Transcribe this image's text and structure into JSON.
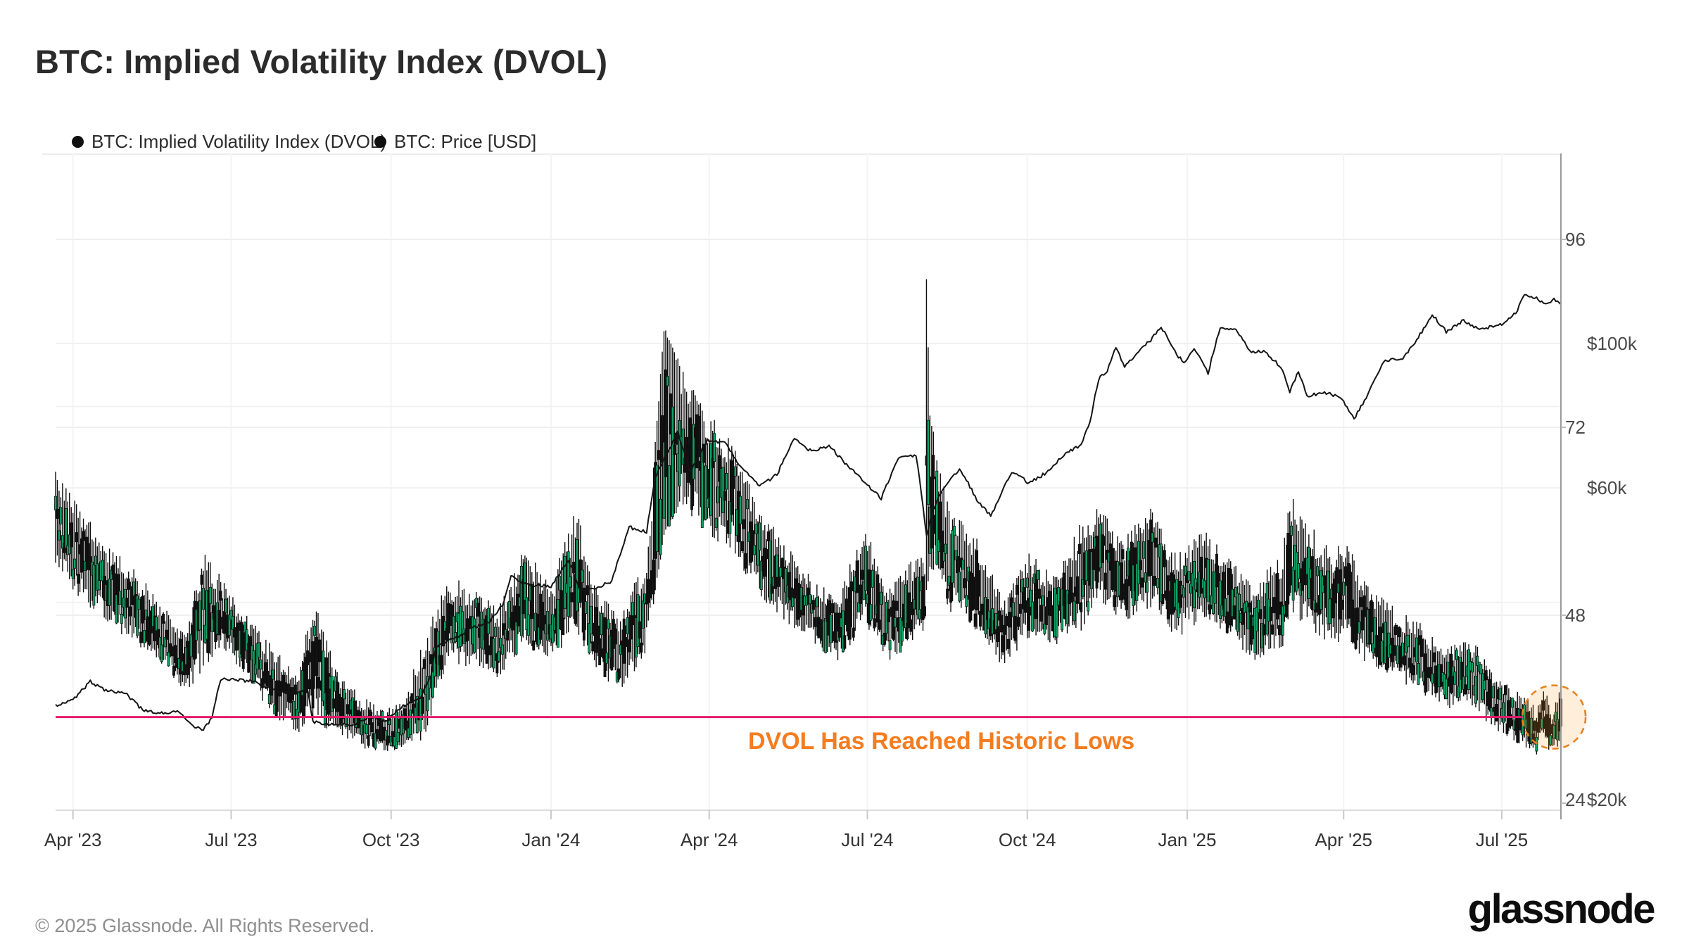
{
  "title": "BTC: Implied Volatility Index (DVOL)",
  "legend": {
    "items": [
      {
        "label": "BTC: Implied Volatility Index (DVOL)",
        "marker_color": "#101010"
      },
      {
        "label": "BTC: Price [USD]",
        "marker_color": "#101010"
      }
    ]
  },
  "annotation": {
    "text": "DVOL Has Reached Historic Lows",
    "color": "#f57c1f"
  },
  "footer": {
    "copyright": "© 2025 Glassnode. All Rights Reserved.",
    "brand": "glassnode"
  },
  "chart_data": {
    "type": "mixed",
    "x_axis": {
      "start_date": "2023-03-22",
      "end_date": "2025-08-03",
      "tick_labels": [
        "Apr '23",
        "Jul '23",
        "Oct '23",
        "Jan '24",
        "Apr '24",
        "Jul '24",
        "Oct '24",
        "Jan '25",
        "Apr '25",
        "Jul '25"
      ],
      "tick_days": [
        10,
        101,
        193,
        285,
        376,
        467,
        559,
        651,
        741,
        832
      ]
    },
    "y_axis_dvol": {
      "side": "right",
      "scale": "linear",
      "ticks": [
        {
          "label": "96",
          "value": 96
        },
        {
          "label": "72",
          "value": 72
        },
        {
          "label": "48",
          "value": 48
        },
        {
          "label": "24",
          "value": 24
        }
      ],
      "gridline_values": [
        96,
        72,
        48
      ]
    },
    "y_axis_price": {
      "side": "right",
      "scale": "log",
      "unit": "USD thousands",
      "ticks": [
        {
          "label": "$100k",
          "value": 100
        },
        {
          "label": "$60k",
          "value": 60
        },
        {
          "label": "$20k",
          "value": 20
        }
      ],
      "gridline_values": [
        100,
        80,
        60,
        40
      ]
    },
    "series": [
      {
        "name": "BTC: Implied Volatility Index (DVOL)",
        "type": "candlestick",
        "color_up": "#0fa263",
        "color_down": "#111111",
        "keyframes_day_high_low": [
          [
            0,
            67,
            54
          ],
          [
            14,
            62,
            50
          ],
          [
            30,
            57,
            47
          ],
          [
            45,
            54,
            44
          ],
          [
            60,
            50,
            42
          ],
          [
            75,
            46,
            38
          ],
          [
            85,
            57,
            41
          ],
          [
            95,
            53,
            44
          ],
          [
            110,
            48,
            40
          ],
          [
            125,
            44,
            35
          ],
          [
            140,
            41,
            33
          ],
          [
            148,
            52,
            34
          ],
          [
            160,
            42,
            33
          ],
          [
            175,
            38,
            31
          ],
          [
            190,
            36,
            30.5
          ],
          [
            200,
            37,
            31
          ],
          [
            213,
            46,
            32
          ],
          [
            225,
            53,
            42
          ],
          [
            240,
            52,
            41
          ],
          [
            255,
            49,
            40
          ],
          [
            270,
            57,
            44
          ],
          [
            285,
            52,
            42
          ],
          [
            300,
            62,
            46
          ],
          [
            310,
            52,
            41
          ],
          [
            325,
            48,
            38
          ],
          [
            340,
            56,
            43
          ],
          [
            350,
            85,
            58
          ],
          [
            360,
            80,
            62
          ],
          [
            375,
            74,
            58
          ],
          [
            390,
            70,
            56
          ],
          [
            405,
            62,
            50
          ],
          [
            420,
            57,
            47
          ],
          [
            435,
            53,
            44
          ],
          [
            450,
            50,
            42
          ],
          [
            465,
            60,
            46
          ],
          [
            478,
            52,
            42
          ],
          [
            492,
            55,
            44
          ],
          [
            500,
            56,
            46
          ],
          [
            501,
            92,
            50
          ],
          [
            503,
            74,
            54
          ],
          [
            508,
            68,
            52
          ],
          [
            515,
            62,
            48
          ],
          [
            530,
            58,
            46
          ],
          [
            545,
            50,
            41
          ],
          [
            560,
            56,
            45
          ],
          [
            575,
            53,
            44
          ],
          [
            590,
            60,
            46
          ],
          [
            600,
            62,
            50
          ],
          [
            615,
            58,
            47
          ],
          [
            630,
            62,
            49
          ],
          [
            645,
            56,
            45
          ],
          [
            660,
            59,
            47
          ],
          [
            675,
            56,
            45
          ],
          [
            690,
            52,
            42
          ],
          [
            705,
            56,
            43
          ],
          [
            712,
            65,
            48
          ],
          [
            720,
            60,
            46
          ],
          [
            735,
            56,
            44
          ],
          [
            741,
            58,
            45
          ],
          [
            755,
            52,
            41
          ],
          [
            770,
            49,
            40
          ],
          [
            785,
            47,
            38
          ],
          [
            800,
            44,
            36
          ],
          [
            815,
            45,
            36
          ],
          [
            830,
            40,
            33
          ],
          [
            845,
            38,
            31
          ],
          [
            852,
            36,
            30
          ],
          [
            856,
            40,
            33
          ],
          [
            860,
            36,
            29.5
          ],
          [
            866,
            39,
            32
          ]
        ]
      },
      {
        "name": "BTC: Price [USD]",
        "type": "line",
        "color": "#141414",
        "keyframes_day_price_k": [
          [
            0,
            27.8
          ],
          [
            10,
            28.3
          ],
          [
            20,
            30.2
          ],
          [
            28,
            29.4
          ],
          [
            40,
            29.0
          ],
          [
            50,
            27.3
          ],
          [
            60,
            27.0
          ],
          [
            70,
            27.2
          ],
          [
            78,
            25.9
          ],
          [
            85,
            25.5
          ],
          [
            90,
            26.6
          ],
          [
            95,
            30.5
          ],
          [
            105,
            30.4
          ],
          [
            115,
            30.2
          ],
          [
            125,
            29.3
          ],
          [
            135,
            29.1
          ],
          [
            145,
            29.4
          ],
          [
            148,
            26.2
          ],
          [
            160,
            26.0
          ],
          [
            170,
            25.9
          ],
          [
            180,
            26.6
          ],
          [
            190,
            26.2
          ],
          [
            200,
            27.7
          ],
          [
            210,
            28.5
          ],
          [
            216,
            31.0
          ],
          [
            219,
            34.3
          ],
          [
            230,
            35.3
          ],
          [
            240,
            36.6
          ],
          [
            250,
            37.4
          ],
          [
            258,
            40.0
          ],
          [
            262,
            43.9
          ],
          [
            270,
            42.6
          ],
          [
            285,
            42.4
          ],
          [
            295,
            46.4
          ],
          [
            302,
            41.6
          ],
          [
            310,
            42.0
          ],
          [
            320,
            43.1
          ],
          [
            330,
            52.2
          ],
          [
            340,
            51.3
          ],
          [
            345,
            62.0
          ],
          [
            350,
            66.5
          ],
          [
            358,
            73.0
          ],
          [
            365,
            63.5
          ],
          [
            375,
            71.0
          ],
          [
            385,
            70.3
          ],
          [
            395,
            64.2
          ],
          [
            405,
            60.2
          ],
          [
            415,
            62.9
          ],
          [
            425,
            71.2
          ],
          [
            435,
            68.2
          ],
          [
            445,
            69.6
          ],
          [
            455,
            65.1
          ],
          [
            465,
            61.2
          ],
          [
            475,
            57.8
          ],
          [
            485,
            66.6
          ],
          [
            495,
            67.5
          ],
          [
            501,
            50.5
          ],
          [
            505,
            55.5
          ],
          [
            510,
            59.4
          ],
          [
            520,
            64.2
          ],
          [
            530,
            57.6
          ],
          [
            538,
            54.2
          ],
          [
            550,
            63.6
          ],
          [
            560,
            61.0
          ],
          [
            570,
            63.3
          ],
          [
            580,
            67.5
          ],
          [
            590,
            69.8
          ],
          [
            595,
            75.5
          ],
          [
            600,
            88.0
          ],
          [
            605,
            91.0
          ],
          [
            610,
            98.3
          ],
          [
            615,
            92.5
          ],
          [
            622,
            96.2
          ],
          [
            630,
            101.2
          ],
          [
            636,
            106.3
          ],
          [
            645,
            95.7
          ],
          [
            650,
            93.6
          ],
          [
            655,
            98.5
          ],
          [
            663,
            90.0
          ],
          [
            670,
            105.8
          ],
          [
            680,
            104.5
          ],
          [
            688,
            96.8
          ],
          [
            695,
            97.6
          ],
          [
            705,
            91.8
          ],
          [
            710,
            84.4
          ],
          [
            715,
            90.5
          ],
          [
            720,
            83.0
          ],
          [
            730,
            84.2
          ],
          [
            740,
            82.4
          ],
          [
            747,
            76.4
          ],
          [
            755,
            83.7
          ],
          [
            765,
            94.5
          ],
          [
            775,
            94.3
          ],
          [
            785,
            103.3
          ],
          [
            792,
            110.8
          ],
          [
            800,
            104.2
          ],
          [
            810,
            108.5
          ],
          [
            820,
            104.8
          ],
          [
            825,
            105.9
          ],
          [
            832,
            107.2
          ],
          [
            840,
            111.2
          ],
          [
            845,
            119.5
          ],
          [
            852,
            117.2
          ],
          [
            858,
            115.0
          ],
          [
            862,
            117.5
          ],
          [
            866,
            114.5
          ]
        ]
      }
    ],
    "reference_line": {
      "dvol_value": 35,
      "start_day": 0,
      "end_day": 844,
      "color": "#e41a6b"
    },
    "highlight_circle": {
      "center_day": 862,
      "center_dvol_value": 35,
      "radius_px": 45,
      "stroke": "#e8821e",
      "fill": "#f7931a",
      "fill_opacity": 0.16
    }
  }
}
